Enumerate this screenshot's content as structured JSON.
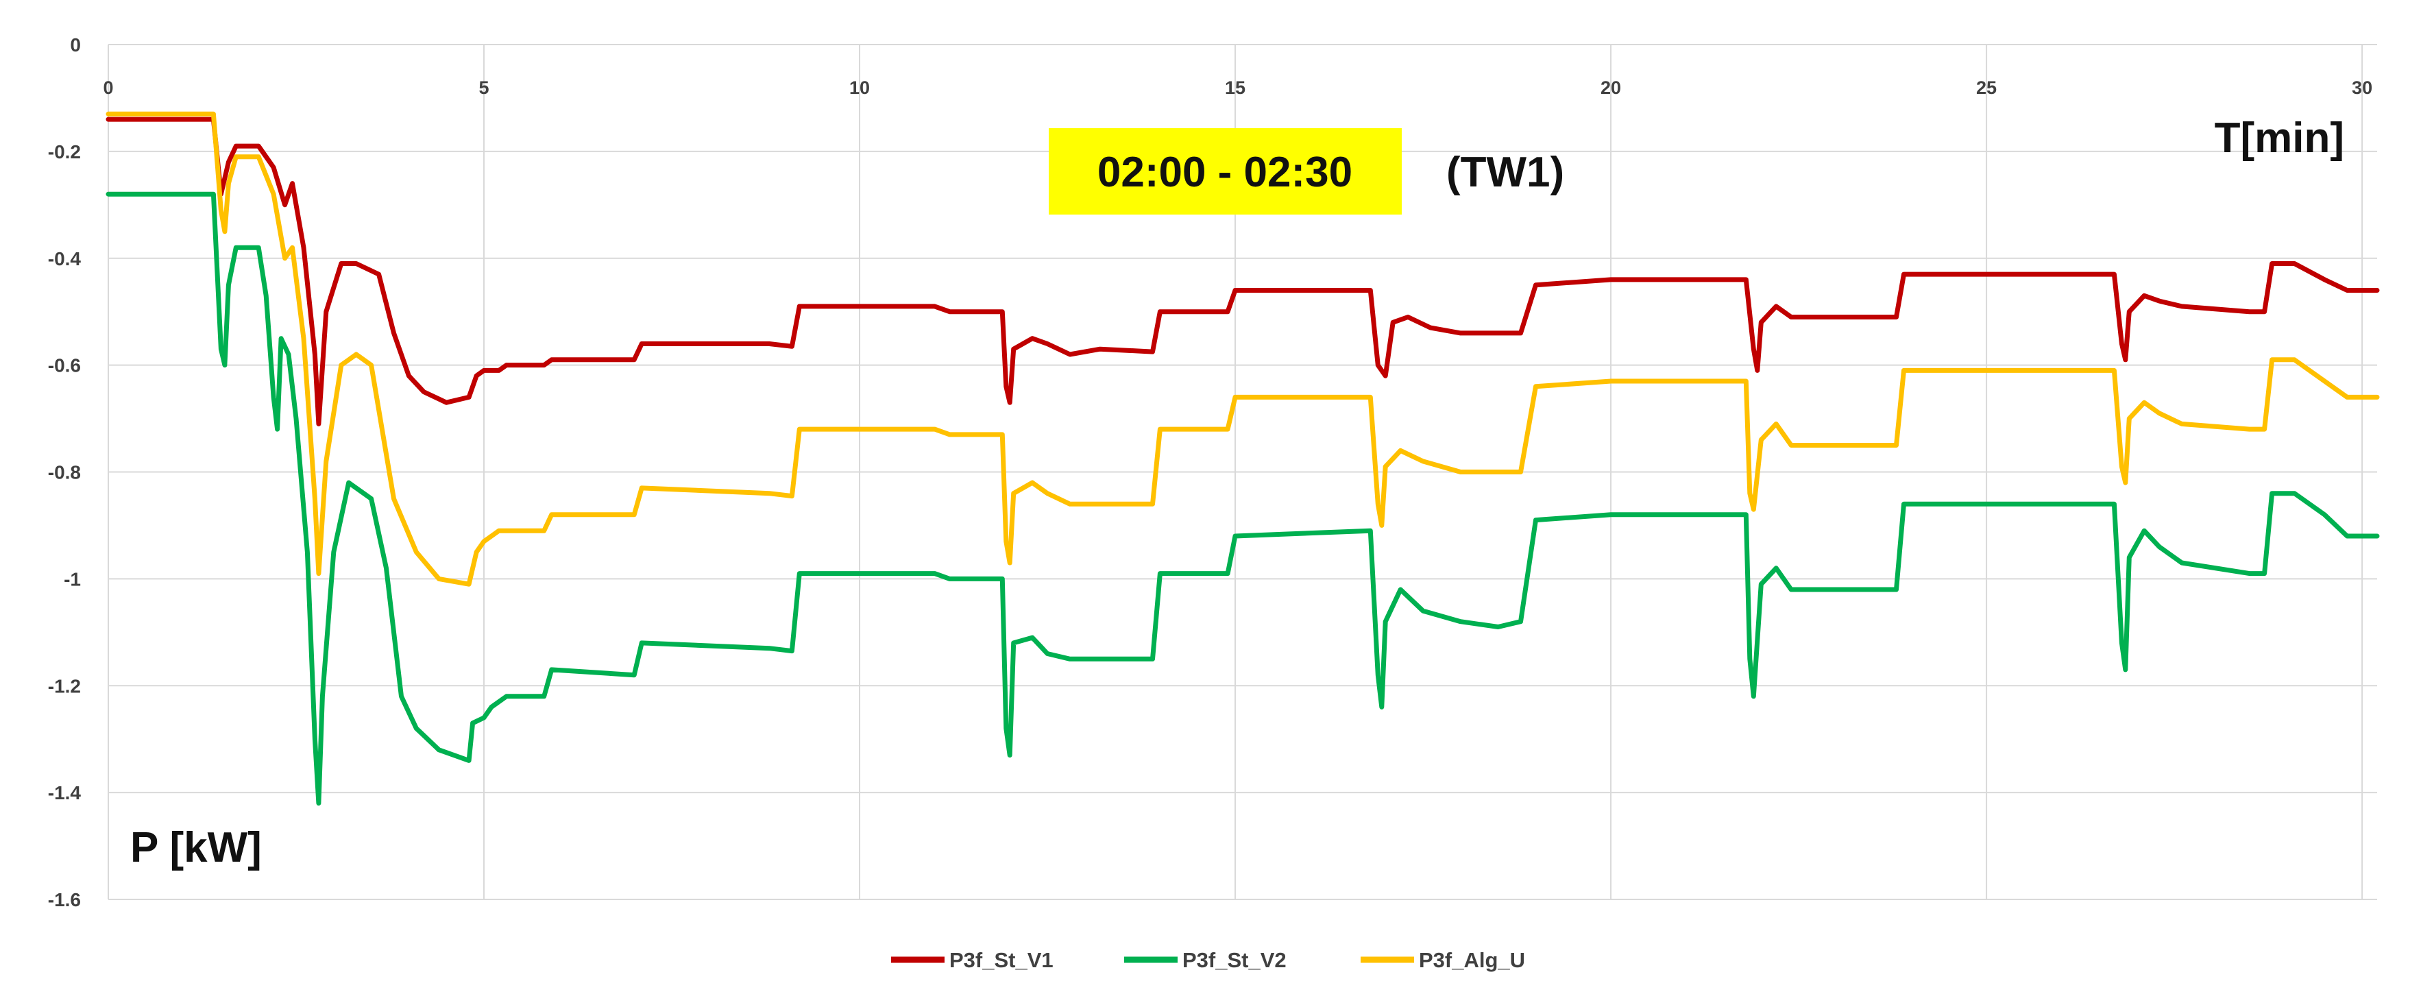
{
  "chart_data": {
    "type": "line",
    "title": "",
    "xlabel": "T[min]",
    "ylabel": "P [kW]",
    "xlim": [
      0,
      30.2
    ],
    "ylim": [
      -1.6,
      0
    ],
    "grid": true,
    "legend_position": "bottom-center",
    "x_ticks": [
      0,
      5,
      10,
      15,
      20,
      25,
      30
    ],
    "y_ticks": [
      0,
      -0.2,
      -0.4,
      -0.6,
      -0.8,
      -1,
      -1.2,
      -1.4,
      -1.6
    ],
    "x_tick_labels": [
      "0",
      "5",
      "10",
      "15",
      "20",
      "25",
      "30"
    ],
    "y_tick_labels": [
      "0",
      "-0.2",
      "-0.4",
      "-0.6",
      "-0.8",
      "-1",
      "-1.2",
      "-1.4",
      "-1.6"
    ],
    "annotations": [
      {
        "text": "02:00 - 02:30",
        "background": "#ffff00"
      },
      {
        "text": "(TW1)"
      }
    ],
    "series": [
      {
        "name": "P3f_St_V1",
        "color": "#c00000",
        "points": [
          [
            0,
            -0.14
          ],
          [
            1.4,
            -0.14
          ],
          [
            1.5,
            -0.28
          ],
          [
            1.6,
            -0.22
          ],
          [
            1.7,
            -0.19
          ],
          [
            2.0,
            -0.19
          ],
          [
            2.2,
            -0.23
          ],
          [
            2.35,
            -0.3
          ],
          [
            2.45,
            -0.26
          ],
          [
            2.6,
            -0.38
          ],
          [
            2.75,
            -0.58
          ],
          [
            2.8,
            -0.71
          ],
          [
            2.9,
            -0.5
          ],
          [
            3.1,
            -0.41
          ],
          [
            3.3,
            -0.41
          ],
          [
            3.6,
            -0.43
          ],
          [
            3.8,
            -0.54
          ],
          [
            4.0,
            -0.62
          ],
          [
            4.2,
            -0.65
          ],
          [
            4.5,
            -0.67
          ],
          [
            4.8,
            -0.66
          ],
          [
            4.9,
            -0.62
          ],
          [
            5.0,
            -0.61
          ],
          [
            5.2,
            -0.61
          ],
          [
            5.3,
            -0.6
          ],
          [
            5.8,
            -0.6
          ],
          [
            5.9,
            -0.59
          ],
          [
            7.0,
            -0.59
          ],
          [
            7.1,
            -0.56
          ],
          [
            8.8,
            -0.56
          ],
          [
            9.1,
            -0.565
          ],
          [
            9.2,
            -0.49
          ],
          [
            11.0,
            -0.49
          ],
          [
            11.2,
            -0.5
          ],
          [
            11.9,
            -0.5
          ],
          [
            11.95,
            -0.64
          ],
          [
            12.0,
            -0.67
          ],
          [
            12.05,
            -0.57
          ],
          [
            12.3,
            -0.55
          ],
          [
            12.5,
            -0.56
          ],
          [
            12.8,
            -0.58
          ],
          [
            13.2,
            -0.57
          ],
          [
            13.9,
            -0.575
          ],
          [
            14.0,
            -0.5
          ],
          [
            14.9,
            -0.5
          ],
          [
            15.0,
            -0.46
          ],
          [
            16.8,
            -0.46
          ],
          [
            16.9,
            -0.6
          ],
          [
            17.0,
            -0.62
          ],
          [
            17.1,
            -0.52
          ],
          [
            17.3,
            -0.51
          ],
          [
            17.6,
            -0.53
          ],
          [
            18.0,
            -0.54
          ],
          [
            18.8,
            -0.54
          ],
          [
            19.0,
            -0.45
          ],
          [
            20.0,
            -0.44
          ],
          [
            21.8,
            -0.44
          ],
          [
            21.9,
            -0.57
          ],
          [
            21.95,
            -0.61
          ],
          [
            22.0,
            -0.52
          ],
          [
            22.2,
            -0.49
          ],
          [
            22.4,
            -0.51
          ],
          [
            23.0,
            -0.51
          ],
          [
            23.8,
            -0.51
          ],
          [
            23.9,
            -0.43
          ],
          [
            26.7,
            -0.43
          ],
          [
            26.8,
            -0.56
          ],
          [
            26.85,
            -0.59
          ],
          [
            26.9,
            -0.5
          ],
          [
            27.1,
            -0.47
          ],
          [
            27.3,
            -0.48
          ],
          [
            27.6,
            -0.49
          ],
          [
            28.5,
            -0.5
          ],
          [
            28.7,
            -0.5
          ],
          [
            28.8,
            -0.41
          ],
          [
            29.1,
            -0.41
          ],
          [
            29.5,
            -0.44
          ],
          [
            29.8,
            -0.46
          ],
          [
            30.2,
            -0.46
          ]
        ]
      },
      {
        "name": "P3f_St_V2",
        "color": "#00b050",
        "points": [
          [
            0,
            -0.28
          ],
          [
            1.4,
            -0.28
          ],
          [
            1.5,
            -0.57
          ],
          [
            1.55,
            -0.6
          ],
          [
            1.6,
            -0.45
          ],
          [
            1.7,
            -0.38
          ],
          [
            2.0,
            -0.38
          ],
          [
            2.1,
            -0.47
          ],
          [
            2.2,
            -0.66
          ],
          [
            2.25,
            -0.72
          ],
          [
            2.3,
            -0.55
          ],
          [
            2.4,
            -0.58
          ],
          [
            2.5,
            -0.7
          ],
          [
            2.65,
            -0.95
          ],
          [
            2.75,
            -1.3
          ],
          [
            2.8,
            -1.42
          ],
          [
            2.85,
            -1.22
          ],
          [
            3.0,
            -0.95
          ],
          [
            3.2,
            -0.82
          ],
          [
            3.5,
            -0.85
          ],
          [
            3.7,
            -0.98
          ],
          [
            3.9,
            -1.22
          ],
          [
            4.1,
            -1.28
          ],
          [
            4.4,
            -1.32
          ],
          [
            4.8,
            -1.34
          ],
          [
            4.85,
            -1.27
          ],
          [
            5.0,
            -1.26
          ],
          [
            5.1,
            -1.24
          ],
          [
            5.3,
            -1.22
          ],
          [
            5.8,
            -1.22
          ],
          [
            5.9,
            -1.17
          ],
          [
            7.0,
            -1.18
          ],
          [
            7.1,
            -1.12
          ],
          [
            8.8,
            -1.13
          ],
          [
            9.1,
            -1.135
          ],
          [
            9.2,
            -0.99
          ],
          [
            11.0,
            -0.99
          ],
          [
            11.2,
            -1.0
          ],
          [
            11.9,
            -1.0
          ],
          [
            11.95,
            -1.28
          ],
          [
            12.0,
            -1.33
          ],
          [
            12.05,
            -1.12
          ],
          [
            12.3,
            -1.11
          ],
          [
            12.5,
            -1.14
          ],
          [
            12.8,
            -1.15
          ],
          [
            13.9,
            -1.15
          ],
          [
            14.0,
            -0.99
          ],
          [
            14.9,
            -0.99
          ],
          [
            15.0,
            -0.92
          ],
          [
            16.8,
            -0.91
          ],
          [
            16.9,
            -1.18
          ],
          [
            16.95,
            -1.24
          ],
          [
            17.0,
            -1.08
          ],
          [
            17.2,
            -1.02
          ],
          [
            17.5,
            -1.06
          ],
          [
            18.0,
            -1.08
          ],
          [
            18.5,
            -1.09
          ],
          [
            18.8,
            -1.08
          ],
          [
            19.0,
            -0.89
          ],
          [
            20.0,
            -0.88
          ],
          [
            21.8,
            -0.88
          ],
          [
            21.85,
            -1.15
          ],
          [
            21.9,
            -1.22
          ],
          [
            22.0,
            -1.01
          ],
          [
            22.2,
            -0.98
          ],
          [
            22.4,
            -1.02
          ],
          [
            23.8,
            -1.02
          ],
          [
            23.9,
            -0.86
          ],
          [
            26.7,
            -0.86
          ],
          [
            26.8,
            -1.12
          ],
          [
            26.85,
            -1.17
          ],
          [
            26.9,
            -0.96
          ],
          [
            27.1,
            -0.91
          ],
          [
            27.3,
            -0.94
          ],
          [
            27.6,
            -0.97
          ],
          [
            28.5,
            -0.99
          ],
          [
            28.7,
            -0.99
          ],
          [
            28.8,
            -0.84
          ],
          [
            29.1,
            -0.84
          ],
          [
            29.5,
            -0.88
          ],
          [
            29.8,
            -0.92
          ],
          [
            30.2,
            -0.92
          ]
        ]
      },
      {
        "name": "P3f_Alg_U",
        "color": "#ffc000",
        "points": [
          [
            0,
            -0.13
          ],
          [
            1.4,
            -0.13
          ],
          [
            1.5,
            -0.31
          ],
          [
            1.55,
            -0.35
          ],
          [
            1.6,
            -0.26
          ],
          [
            1.7,
            -0.21
          ],
          [
            2.0,
            -0.21
          ],
          [
            2.2,
            -0.28
          ],
          [
            2.35,
            -0.4
          ],
          [
            2.45,
            -0.38
          ],
          [
            2.6,
            -0.55
          ],
          [
            2.75,
            -0.85
          ],
          [
            2.8,
            -0.99
          ],
          [
            2.9,
            -0.78
          ],
          [
            3.1,
            -0.6
          ],
          [
            3.3,
            -0.58
          ],
          [
            3.5,
            -0.6
          ],
          [
            3.8,
            -0.85
          ],
          [
            4.1,
            -0.95
          ],
          [
            4.4,
            -1.0
          ],
          [
            4.8,
            -1.01
          ],
          [
            4.9,
            -0.95
          ],
          [
            5.0,
            -0.93
          ],
          [
            5.2,
            -0.91
          ],
          [
            5.8,
            -0.91
          ],
          [
            5.9,
            -0.88
          ],
          [
            7.0,
            -0.88
          ],
          [
            7.1,
            -0.83
          ],
          [
            8.8,
            -0.84
          ],
          [
            9.1,
            -0.845
          ],
          [
            9.2,
            -0.72
          ],
          [
            11.0,
            -0.72
          ],
          [
            11.2,
            -0.73
          ],
          [
            11.9,
            -0.73
          ],
          [
            11.95,
            -0.93
          ],
          [
            12.0,
            -0.97
          ],
          [
            12.05,
            -0.84
          ],
          [
            12.3,
            -0.82
          ],
          [
            12.5,
            -0.84
          ],
          [
            12.8,
            -0.86
          ],
          [
            13.9,
            -0.86
          ],
          [
            14.0,
            -0.72
          ],
          [
            14.9,
            -0.72
          ],
          [
            15.0,
            -0.66
          ],
          [
            16.8,
            -0.66
          ],
          [
            16.9,
            -0.86
          ],
          [
            16.95,
            -0.9
          ],
          [
            17.0,
            -0.79
          ],
          [
            17.2,
            -0.76
          ],
          [
            17.5,
            -0.78
          ],
          [
            18.0,
            -0.8
          ],
          [
            18.8,
            -0.8
          ],
          [
            19.0,
            -0.64
          ],
          [
            20.0,
            -0.63
          ],
          [
            21.8,
            -0.63
          ],
          [
            21.85,
            -0.84
          ],
          [
            21.9,
            -0.87
          ],
          [
            22.0,
            -0.74
          ],
          [
            22.2,
            -0.71
          ],
          [
            22.4,
            -0.75
          ],
          [
            23.8,
            -0.75
          ],
          [
            23.9,
            -0.61
          ],
          [
            26.7,
            -0.61
          ],
          [
            26.8,
            -0.79
          ],
          [
            26.85,
            -0.82
          ],
          [
            26.9,
            -0.7
          ],
          [
            27.1,
            -0.67
          ],
          [
            27.3,
            -0.69
          ],
          [
            27.6,
            -0.71
          ],
          [
            28.5,
            -0.72
          ],
          [
            28.7,
            -0.72
          ],
          [
            28.8,
            -0.59
          ],
          [
            29.1,
            -0.59
          ],
          [
            29.5,
            -0.63
          ],
          [
            29.8,
            -0.66
          ],
          [
            30.2,
            -0.66
          ]
        ]
      }
    ]
  }
}
